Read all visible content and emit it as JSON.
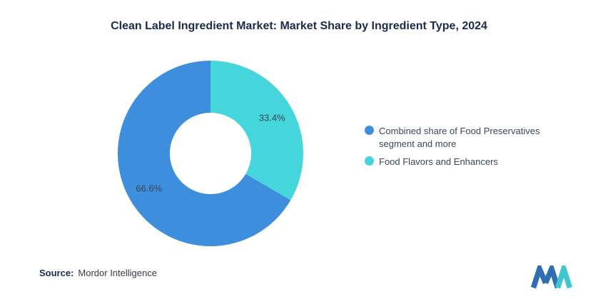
{
  "title": "Clean Label Ingredient Market: Market Share by Ingredient Type, 2024",
  "source": {
    "label": "Source:",
    "text": "Mordor Intelligence"
  },
  "colors": {
    "title": "#1b2b4d",
    "blue": "#3e8ede",
    "teal": "#45d6db",
    "label_text": "#3a4456"
  },
  "chart_data": {
    "type": "pie",
    "donut": true,
    "start_angle_deg": -90,
    "direction": "clockwise",
    "title": "Clean Label Ingredient Market: Market Share by Ingredient Type, 2024",
    "legend_position": "right",
    "slices": [
      {
        "label": "Food Flavors and Enhancers",
        "value": 33.4,
        "display": "33.4%",
        "color": "#45d6db"
      },
      {
        "label": "Combined share of Food Preservatives segment and more",
        "value": 66.6,
        "display": "66.6%",
        "color": "#3e8ede"
      }
    ],
    "legend": [
      {
        "label": "Combined share of Food Preservatives segment and more",
        "color": "#3e8ede"
      },
      {
        "label": "Food Flavors and Enhancers",
        "color": "#45d6db"
      }
    ]
  }
}
